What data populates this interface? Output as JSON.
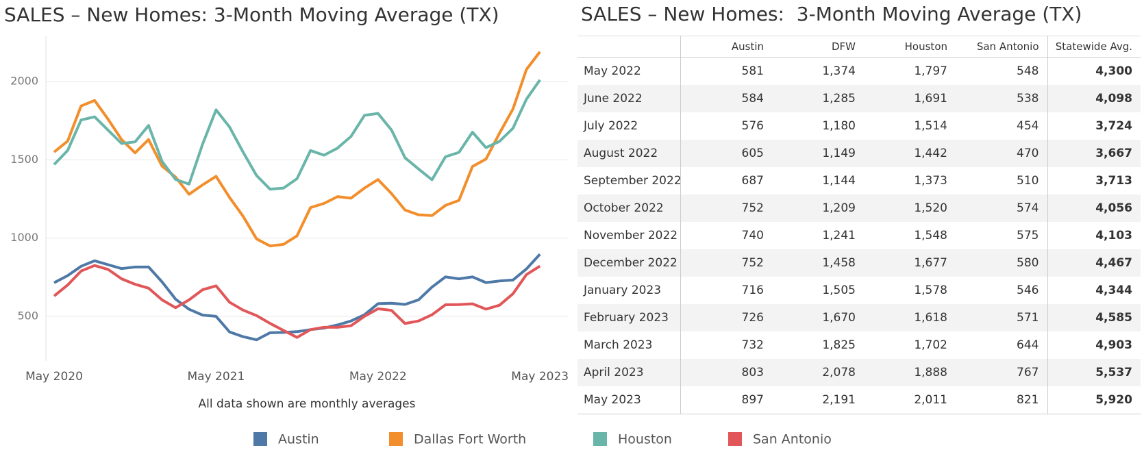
{
  "chart_data": {
    "type": "line",
    "title": "SALES – New Homes: 3-Month Moving Average (TX)",
    "annotation": "All data shown are monthly averages",
    "categories": [
      "May 2020",
      null,
      null,
      null,
      null,
      null,
      null,
      null,
      null,
      null,
      null,
      null,
      "May 2021",
      null,
      null,
      null,
      null,
      null,
      null,
      null,
      null,
      null,
      null,
      null,
      "May 2022",
      null,
      null,
      null,
      null,
      null,
      null,
      null,
      null,
      null,
      null,
      null,
      "May 2023"
    ],
    "ylim": [
      215,
      2290
    ],
    "yticks": [
      500,
      1000,
      1500,
      2000
    ],
    "grid": true,
    "series": [
      {
        "name": "Austin",
        "color": "#4e79a7",
        "values": [
          715,
          760,
          820,
          855,
          830,
          805,
          815,
          815,
          720,
          610,
          545,
          508,
          500,
          400,
          370,
          350,
          395,
          397,
          402,
          415,
          425,
          445,
          470,
          510,
          581,
          584,
          576,
          605,
          687,
          752,
          740,
          752,
          716,
          726,
          732,
          803,
          897
        ]
      },
      {
        "name": "Dallas Fort Worth",
        "color": "#f28e2b",
        "values": [
          1550,
          1620,
          1845,
          1880,
          1760,
          1630,
          1545,
          1630,
          1460,
          1390,
          1280,
          1340,
          1395,
          1260,
          1140,
          995,
          950,
          960,
          1015,
          1195,
          1222,
          1265,
          1255,
          1320,
          1374,
          1285,
          1180,
          1149,
          1144,
          1209,
          1241,
          1458,
          1505,
          1670,
          1825,
          2078,
          2191
        ]
      },
      {
        "name": "Houston",
        "color": "#6ab5aa",
        "values": [
          1470,
          1560,
          1755,
          1775,
          1690,
          1605,
          1615,
          1720,
          1490,
          1375,
          1345,
          1600,
          1820,
          1710,
          1550,
          1400,
          1313,
          1320,
          1380,
          1560,
          1530,
          1575,
          1650,
          1785,
          1797,
          1691,
          1514,
          1442,
          1373,
          1520,
          1548,
          1677,
          1578,
          1618,
          1702,
          1888,
          2011
        ]
      },
      {
        "name": "San Antonio",
        "color": "#e15759",
        "values": [
          630,
          700,
          790,
          825,
          800,
          740,
          705,
          680,
          605,
          555,
          605,
          670,
          695,
          590,
          540,
          505,
          455,
          410,
          365,
          415,
          430,
          430,
          440,
          500,
          548,
          538,
          454,
          470,
          510,
          574,
          575,
          580,
          546,
          571,
          644,
          767,
          821
        ]
      }
    ]
  },
  "table": {
    "title": "SALES – New Homes:  3-Month Moving Average (TX)",
    "columns": [
      "Austin",
      "DFW",
      "Houston",
      "San Antonio",
      "Statewide Avg."
    ],
    "rows": [
      [
        "May 2022",
        "581",
        "1,374",
        "1,797",
        "548",
        "4,300"
      ],
      [
        "June 2022",
        "584",
        "1,285",
        "1,691",
        "538",
        "4,098"
      ],
      [
        "July 2022",
        "576",
        "1,180",
        "1,514",
        "454",
        "3,724"
      ],
      [
        "August 2022",
        "605",
        "1,149",
        "1,442",
        "470",
        "3,667"
      ],
      [
        "September 2022",
        "687",
        "1,144",
        "1,373",
        "510",
        "3,713"
      ],
      [
        "October 2022",
        "752",
        "1,209",
        "1,520",
        "574",
        "4,056"
      ],
      [
        "November 2022",
        "740",
        "1,241",
        "1,548",
        "575",
        "4,103"
      ],
      [
        "December 2022",
        "752",
        "1,458",
        "1,677",
        "580",
        "4,467"
      ],
      [
        "January 2023",
        "716",
        "1,505",
        "1,578",
        "546",
        "4,344"
      ],
      [
        "February 2023",
        "726",
        "1,670",
        "1,618",
        "571",
        "4,585"
      ],
      [
        "March 2023",
        "732",
        "1,825",
        "1,702",
        "644",
        "4,903"
      ],
      [
        "April 2023",
        "803",
        "2,078",
        "1,888",
        "767",
        "5,537"
      ],
      [
        "May 2023",
        "897",
        "2,191",
        "2,011",
        "821",
        "5,920"
      ]
    ]
  }
}
